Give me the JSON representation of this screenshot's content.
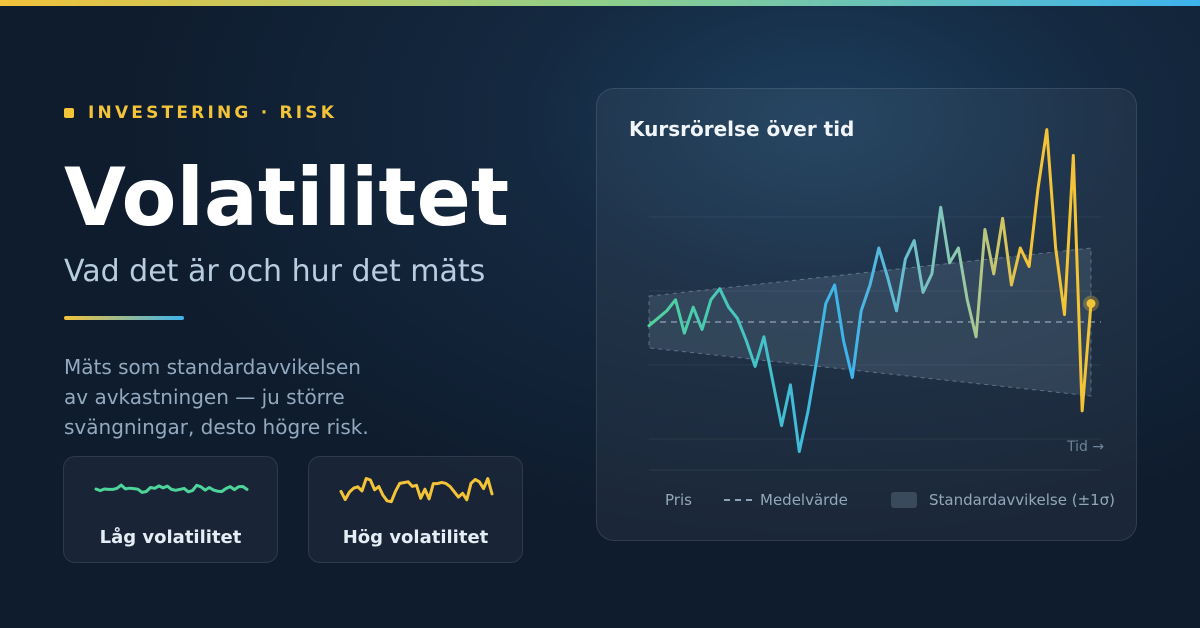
{
  "tag": "INVESTERING · RISK",
  "title": "Volatilitet",
  "subtitle": "Vad det är och hur det mäts",
  "description": [
    "Mäts som standardavvikelsen",
    "av avkastningen — ju större",
    "svängningar, desto högre risk."
  ],
  "cards": [
    {
      "label": "Låg volatilitet",
      "color": "#4ed49a"
    },
    {
      "label": "Hög volatilitet",
      "color": "#f3c338"
    }
  ],
  "colors": {
    "accent_yellow": "#f3c338",
    "accent_blue": "#3db3ee",
    "accent_green": "#4ed49a"
  },
  "chart_data": {
    "type": "line",
    "title": "Kursrörelse över tid",
    "xlabel": "Tid →",
    "ylabel": "",
    "grid": true,
    "legend": [
      "Pris",
      "Medelvärde",
      "Standardavvikelse (±1σ)"
    ],
    "legend_position": "bottom",
    "ylim": [
      -5,
      3
    ],
    "mean": 0,
    "std_band": {
      "start": 0.7,
      "end": 2.0
    },
    "series": [
      {
        "name": "Pris",
        "x": [
          0,
          2,
          4,
          6,
          8,
          10,
          12,
          14,
          16,
          18,
          20,
          22,
          24,
          26,
          28,
          30,
          32,
          34,
          36,
          38,
          40,
          42,
          44,
          46,
          48,
          50,
          52,
          54,
          56,
          58,
          60,
          62,
          64,
          66,
          68,
          70,
          72,
          74,
          76,
          78,
          80,
          82,
          84,
          86,
          88,
          90,
          92,
          94,
          96,
          98,
          100
        ],
        "values": [
          -0.1,
          0.1,
          0.3,
          0.6,
          -0.3,
          0.4,
          -0.2,
          0.6,
          0.9,
          0.4,
          0.1,
          -0.5,
          -1.2,
          -0.4,
          -1.6,
          -2.8,
          -1.7,
          -3.5,
          -2.4,
          -1.0,
          0.5,
          1.0,
          -0.5,
          -1.5,
          0.3,
          1.0,
          2.0,
          1.2,
          0.3,
          1.7,
          2.2,
          0.8,
          1.3,
          3.1,
          1.6,
          2.0,
          0.6,
          -0.4,
          2.5,
          1.3,
          2.8,
          1.0,
          2.0,
          1.5,
          3.6,
          5.2,
          2.0,
          0.2,
          4.5,
          -2.4,
          0.5
        ]
      }
    ]
  }
}
